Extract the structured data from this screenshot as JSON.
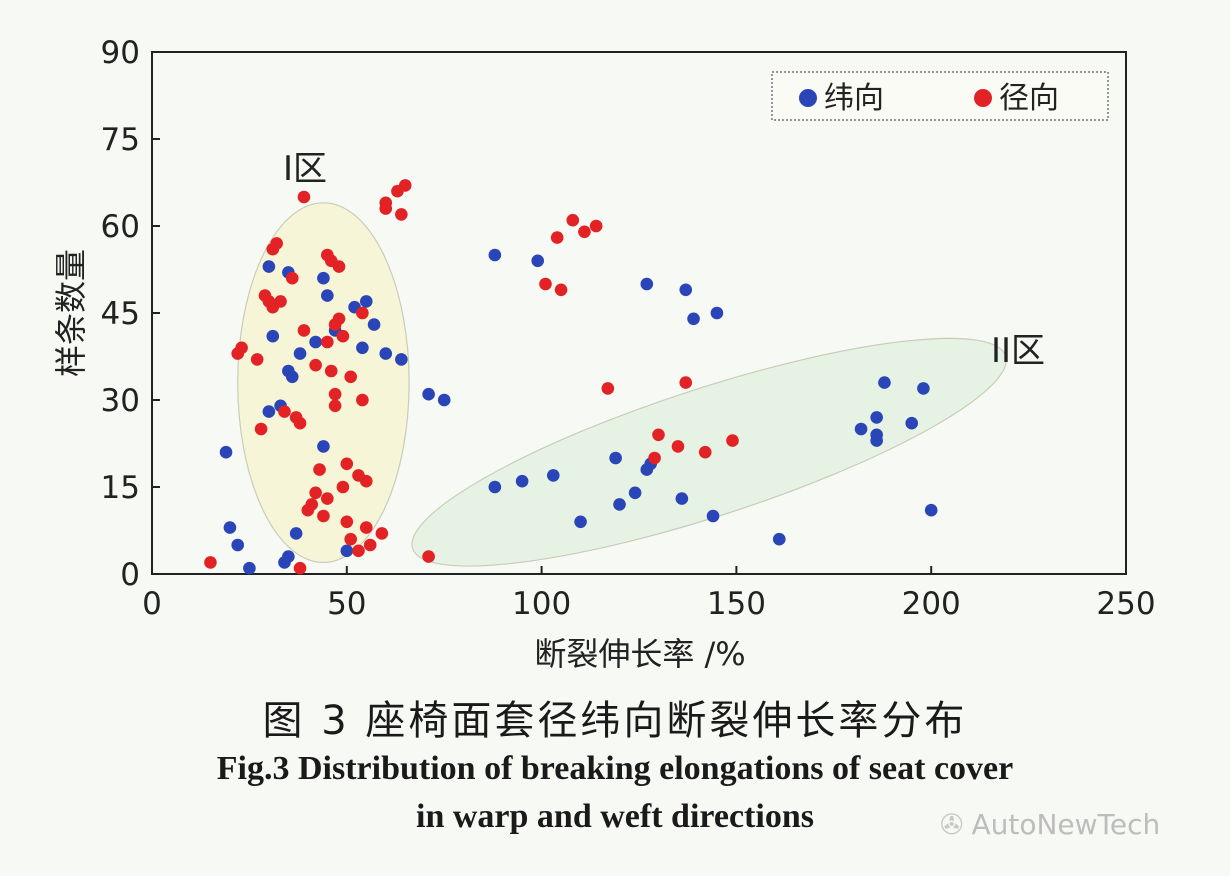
{
  "chart_data": {
    "type": "scatter",
    "title": "",
    "xlabel": "断裂伸长率 /%",
    "ylabel": "样条数量",
    "xlim": [
      0,
      250
    ],
    "ylim": [
      0,
      90
    ],
    "xticks": [
      0,
      50,
      100,
      150,
      200,
      250
    ],
    "yticks": [
      0,
      15,
      30,
      45,
      60,
      75,
      90
    ],
    "legend": {
      "placement": "top-right",
      "entries": [
        "纬向",
        "径向"
      ]
    },
    "grid": false,
    "regions": [
      {
        "label": "I区",
        "color": "#f7f5d8",
        "cx": 44,
        "cy": 33,
        "rx": 22,
        "ry": 31
      },
      {
        "label": "II区",
        "color": "#e6f3e4",
        "cx": 143,
        "cy": 21,
        "rx": 80,
        "ry": 11,
        "angle_deg": -18
      }
    ],
    "series": [
      {
        "name": "纬向",
        "color": "#2a45b8",
        "points": [
          [
            19,
            21
          ],
          [
            20,
            8
          ],
          [
            22,
            5
          ],
          [
            25,
            1
          ],
          [
            30,
            28
          ],
          [
            30,
            53
          ],
          [
            31,
            41
          ],
          [
            33,
            29
          ],
          [
            34,
            2
          ],
          [
            35,
            3
          ],
          [
            35,
            35
          ],
          [
            35,
            52
          ],
          [
            36,
            34
          ],
          [
            37,
            7
          ],
          [
            38,
            38
          ],
          [
            42,
            40
          ],
          [
            44,
            22
          ],
          [
            44,
            51
          ],
          [
            45,
            48
          ],
          [
            47,
            42
          ],
          [
            50,
            4
          ],
          [
            52,
            46
          ],
          [
            54,
            39
          ],
          [
            55,
            47
          ],
          [
            57,
            43
          ],
          [
            60,
            38
          ],
          [
            64,
            37
          ],
          [
            71,
            31
          ],
          [
            75,
            30
          ],
          [
            88,
            15
          ],
          [
            88,
            55
          ],
          [
            95,
            16
          ],
          [
            99,
            54
          ],
          [
            103,
            17
          ],
          [
            110,
            9
          ],
          [
            119,
            20
          ],
          [
            120,
            12
          ],
          [
            124,
            14
          ],
          [
            127,
            18
          ],
          [
            127,
            50
          ],
          [
            128,
            19
          ],
          [
            136,
            13
          ],
          [
            137,
            49
          ],
          [
            139,
            44
          ],
          [
            144,
            10
          ],
          [
            145,
            45
          ],
          [
            161,
            6
          ],
          [
            182,
            25
          ],
          [
            186,
            24
          ],
          [
            186,
            23
          ],
          [
            186,
            27
          ],
          [
            188,
            33
          ],
          [
            195,
            26
          ],
          [
            198,
            32
          ],
          [
            200,
            11
          ]
        ]
      },
      {
        "name": "径向",
        "color": "#e32225",
        "points": [
          [
            15,
            2
          ],
          [
            22,
            38
          ],
          [
            23,
            39
          ],
          [
            27,
            37
          ],
          [
            28,
            25
          ],
          [
            29,
            48
          ],
          [
            30,
            47
          ],
          [
            31,
            46
          ],
          [
            31,
            56
          ],
          [
            32,
            57
          ],
          [
            33,
            47
          ],
          [
            34,
            28
          ],
          [
            36,
            51
          ],
          [
            37,
            27
          ],
          [
            38,
            26
          ],
          [
            38,
            1
          ],
          [
            39,
            42
          ],
          [
            39,
            65
          ],
          [
            40,
            11
          ],
          [
            41,
            12
          ],
          [
            42,
            14
          ],
          [
            42,
            36
          ],
          [
            43,
            18
          ],
          [
            44,
            10
          ],
          [
            45,
            13
          ],
          [
            45,
            40
          ],
          [
            45,
            55
          ],
          [
            46,
            54
          ],
          [
            46,
            35
          ],
          [
            47,
            31
          ],
          [
            47,
            29
          ],
          [
            47,
            43
          ],
          [
            48,
            44
          ],
          [
            48,
            53
          ],
          [
            49,
            15
          ],
          [
            49,
            41
          ],
          [
            50,
            9
          ],
          [
            50,
            19
          ],
          [
            51,
            6
          ],
          [
            51,
            34
          ],
          [
            53,
            17
          ],
          [
            53,
            4
          ],
          [
            54,
            45
          ],
          [
            54,
            30
          ],
          [
            55,
            16
          ],
          [
            55,
            8
          ],
          [
            56,
            5
          ],
          [
            59,
            7
          ],
          [
            60,
            63
          ],
          [
            60,
            64
          ],
          [
            63,
            66
          ],
          [
            64,
            62
          ],
          [
            65,
            67
          ],
          [
            71,
            3
          ],
          [
            101,
            50
          ],
          [
            104,
            58
          ],
          [
            105,
            49
          ],
          [
            108,
            61
          ],
          [
            111,
            59
          ],
          [
            114,
            60
          ],
          [
            117,
            32
          ],
          [
            129,
            20
          ],
          [
            130,
            24
          ],
          [
            135,
            22
          ],
          [
            137,
            33
          ],
          [
            142,
            21
          ],
          [
            149,
            23
          ]
        ]
      }
    ]
  },
  "caption": {
    "cn": "图 3  座椅面套径纬向断裂伸长率分布",
    "en_line1": "Fig.3   Distribution of breaking elongations of seat cover",
    "en_line2": "in warp and weft directions"
  },
  "watermark": {
    "text": "AutoNewTech",
    "icon": "wechat-icon"
  }
}
